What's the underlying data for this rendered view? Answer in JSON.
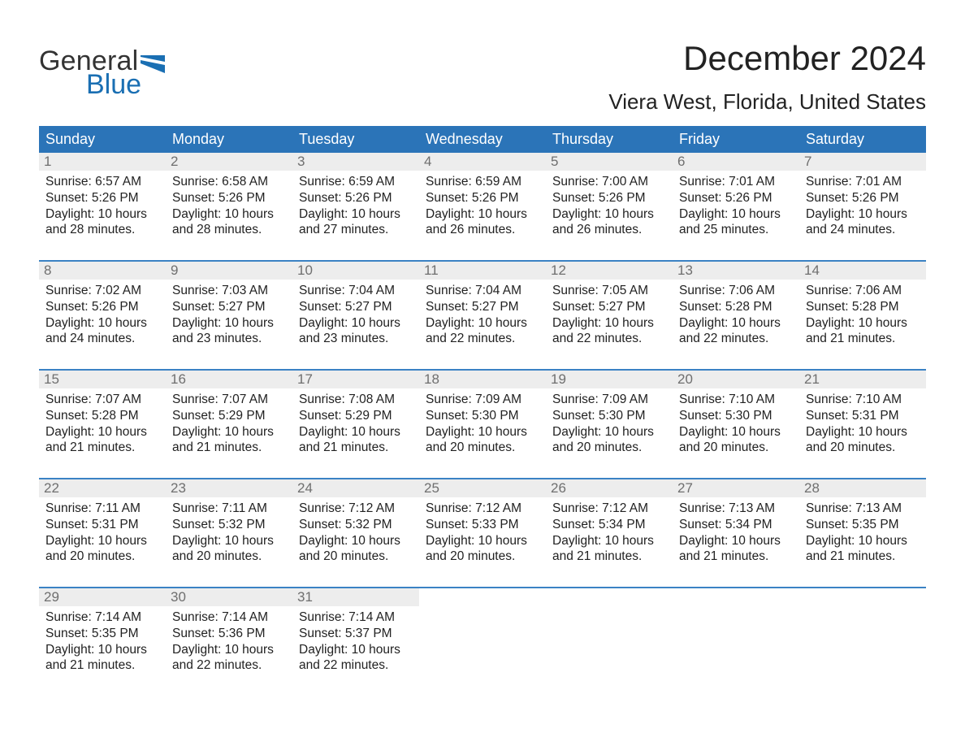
{
  "logo": {
    "text1": "General",
    "text2": "Blue"
  },
  "title": "December 2024",
  "location": "Viera West, Florida, United States",
  "colors": {
    "header_blue": "#2b74b8",
    "accent_blue": "#1a6fb3",
    "divider_blue": "#3b82c4",
    "daynum_bg": "#ededed",
    "daynum_text": "#6f6f6f",
    "body_text": "#333333",
    "page_bg": "#ffffff"
  },
  "day_headers": [
    "Sunday",
    "Monday",
    "Tuesday",
    "Wednesday",
    "Thursday",
    "Friday",
    "Saturday"
  ],
  "weeks": [
    [
      {
        "n": "1",
        "sr": "Sunrise: 6:57 AM",
        "ss": "Sunset: 5:26 PM",
        "d1": "Daylight: 10 hours",
        "d2": "and 28 minutes."
      },
      {
        "n": "2",
        "sr": "Sunrise: 6:58 AM",
        "ss": "Sunset: 5:26 PM",
        "d1": "Daylight: 10 hours",
        "d2": "and 28 minutes."
      },
      {
        "n": "3",
        "sr": "Sunrise: 6:59 AM",
        "ss": "Sunset: 5:26 PM",
        "d1": "Daylight: 10 hours",
        "d2": "and 27 minutes."
      },
      {
        "n": "4",
        "sr": "Sunrise: 6:59 AM",
        "ss": "Sunset: 5:26 PM",
        "d1": "Daylight: 10 hours",
        "d2": "and 26 minutes."
      },
      {
        "n": "5",
        "sr": "Sunrise: 7:00 AM",
        "ss": "Sunset: 5:26 PM",
        "d1": "Daylight: 10 hours",
        "d2": "and 26 minutes."
      },
      {
        "n": "6",
        "sr": "Sunrise: 7:01 AM",
        "ss": "Sunset: 5:26 PM",
        "d1": "Daylight: 10 hours",
        "d2": "and 25 minutes."
      },
      {
        "n": "7",
        "sr": "Sunrise: 7:01 AM",
        "ss": "Sunset: 5:26 PM",
        "d1": "Daylight: 10 hours",
        "d2": "and 24 minutes."
      }
    ],
    [
      {
        "n": "8",
        "sr": "Sunrise: 7:02 AM",
        "ss": "Sunset: 5:26 PM",
        "d1": "Daylight: 10 hours",
        "d2": "and 24 minutes."
      },
      {
        "n": "9",
        "sr": "Sunrise: 7:03 AM",
        "ss": "Sunset: 5:27 PM",
        "d1": "Daylight: 10 hours",
        "d2": "and 23 minutes."
      },
      {
        "n": "10",
        "sr": "Sunrise: 7:04 AM",
        "ss": "Sunset: 5:27 PM",
        "d1": "Daylight: 10 hours",
        "d2": "and 23 minutes."
      },
      {
        "n": "11",
        "sr": "Sunrise: 7:04 AM",
        "ss": "Sunset: 5:27 PM",
        "d1": "Daylight: 10 hours",
        "d2": "and 22 minutes."
      },
      {
        "n": "12",
        "sr": "Sunrise: 7:05 AM",
        "ss": "Sunset: 5:27 PM",
        "d1": "Daylight: 10 hours",
        "d2": "and 22 minutes."
      },
      {
        "n": "13",
        "sr": "Sunrise: 7:06 AM",
        "ss": "Sunset: 5:28 PM",
        "d1": "Daylight: 10 hours",
        "d2": "and 22 minutes."
      },
      {
        "n": "14",
        "sr": "Sunrise: 7:06 AM",
        "ss": "Sunset: 5:28 PM",
        "d1": "Daylight: 10 hours",
        "d2": "and 21 minutes."
      }
    ],
    [
      {
        "n": "15",
        "sr": "Sunrise: 7:07 AM",
        "ss": "Sunset: 5:28 PM",
        "d1": "Daylight: 10 hours",
        "d2": "and 21 minutes."
      },
      {
        "n": "16",
        "sr": "Sunrise: 7:07 AM",
        "ss": "Sunset: 5:29 PM",
        "d1": "Daylight: 10 hours",
        "d2": "and 21 minutes."
      },
      {
        "n": "17",
        "sr": "Sunrise: 7:08 AM",
        "ss": "Sunset: 5:29 PM",
        "d1": "Daylight: 10 hours",
        "d2": "and 21 minutes."
      },
      {
        "n": "18",
        "sr": "Sunrise: 7:09 AM",
        "ss": "Sunset: 5:30 PM",
        "d1": "Daylight: 10 hours",
        "d2": "and 20 minutes."
      },
      {
        "n": "19",
        "sr": "Sunrise: 7:09 AM",
        "ss": "Sunset: 5:30 PM",
        "d1": "Daylight: 10 hours",
        "d2": "and 20 minutes."
      },
      {
        "n": "20",
        "sr": "Sunrise: 7:10 AM",
        "ss": "Sunset: 5:30 PM",
        "d1": "Daylight: 10 hours",
        "d2": "and 20 minutes."
      },
      {
        "n": "21",
        "sr": "Sunrise: 7:10 AM",
        "ss": "Sunset: 5:31 PM",
        "d1": "Daylight: 10 hours",
        "d2": "and 20 minutes."
      }
    ],
    [
      {
        "n": "22",
        "sr": "Sunrise: 7:11 AM",
        "ss": "Sunset: 5:31 PM",
        "d1": "Daylight: 10 hours",
        "d2": "and 20 minutes."
      },
      {
        "n": "23",
        "sr": "Sunrise: 7:11 AM",
        "ss": "Sunset: 5:32 PM",
        "d1": "Daylight: 10 hours",
        "d2": "and 20 minutes."
      },
      {
        "n": "24",
        "sr": "Sunrise: 7:12 AM",
        "ss": "Sunset: 5:32 PM",
        "d1": "Daylight: 10 hours",
        "d2": "and 20 minutes."
      },
      {
        "n": "25",
        "sr": "Sunrise: 7:12 AM",
        "ss": "Sunset: 5:33 PM",
        "d1": "Daylight: 10 hours",
        "d2": "and 20 minutes."
      },
      {
        "n": "26",
        "sr": "Sunrise: 7:12 AM",
        "ss": "Sunset: 5:34 PM",
        "d1": "Daylight: 10 hours",
        "d2": "and 21 minutes."
      },
      {
        "n": "27",
        "sr": "Sunrise: 7:13 AM",
        "ss": "Sunset: 5:34 PM",
        "d1": "Daylight: 10 hours",
        "d2": "and 21 minutes."
      },
      {
        "n": "28",
        "sr": "Sunrise: 7:13 AM",
        "ss": "Sunset: 5:35 PM",
        "d1": "Daylight: 10 hours",
        "d2": "and 21 minutes."
      }
    ],
    [
      {
        "n": "29",
        "sr": "Sunrise: 7:14 AM",
        "ss": "Sunset: 5:35 PM",
        "d1": "Daylight: 10 hours",
        "d2": "and 21 minutes."
      },
      {
        "n": "30",
        "sr": "Sunrise: 7:14 AM",
        "ss": "Sunset: 5:36 PM",
        "d1": "Daylight: 10 hours",
        "d2": "and 22 minutes."
      },
      {
        "n": "31",
        "sr": "Sunrise: 7:14 AM",
        "ss": "Sunset: 5:37 PM",
        "d1": "Daylight: 10 hours",
        "d2": "and 22 minutes."
      },
      null,
      null,
      null,
      null
    ]
  ]
}
